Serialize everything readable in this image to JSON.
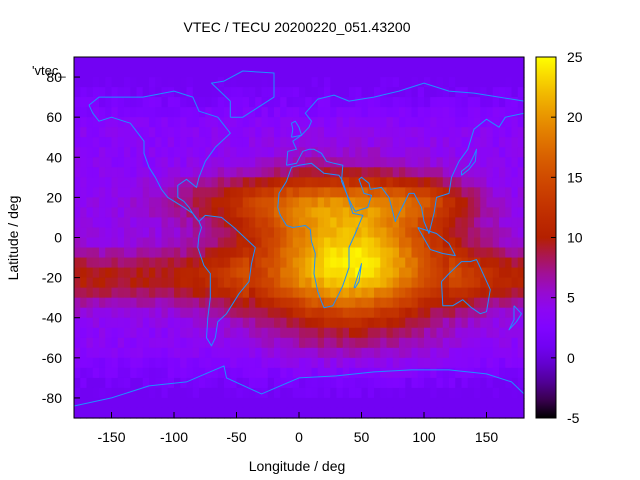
{
  "chart_data": {
    "type": "heatmap",
    "title": "VTEC / TECU 20200220_051.43200",
    "xlabel": "Longitude / deg",
    "ylabel": "Latitude / deg",
    "xlim": [
      -180,
      180
    ],
    "ylim": [
      -90,
      90
    ],
    "x_ticks": [
      -150,
      -100,
      -50,
      0,
      50,
      100,
      150
    ],
    "y_ticks": [
      -80,
      -60,
      -40,
      -20,
      0,
      20,
      40,
      60,
      80
    ],
    "color_range": [
      -5,
      25
    ],
    "colorbar_ticks": [
      -5,
      0,
      5,
      10,
      15,
      20,
      25
    ],
    "colormap": "gnuplot-pm3d",
    "key_label": "'vtec_",
    "coastline_color": "#1e90ff",
    "grid": false,
    "legend": "top-left",
    "features": {
      "background_vtec": 3.5,
      "peak": {
        "lon": 40,
        "lat": -10,
        "vtec": 23
      },
      "southern_arc_vtec": 11,
      "polar_vtec": 1
    }
  }
}
